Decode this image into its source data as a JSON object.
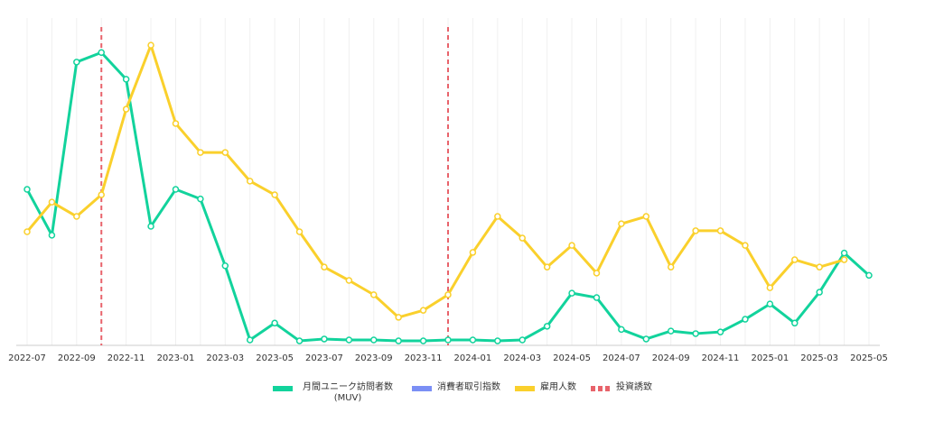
{
  "chart_data": {
    "type": "line",
    "categories": [
      "2022-07",
      null,
      "2022-09",
      null,
      "2022-11",
      null,
      "2023-01",
      null,
      "2023-03",
      null,
      "2023-05",
      null,
      "2023-07",
      null,
      "2023-09",
      null,
      "2023-11",
      null,
      "2024-01",
      null,
      "2024-03",
      null,
      "2024-05",
      null,
      "2024-07",
      null,
      "2024-09",
      null,
      "2024-11",
      null,
      "2025-01",
      null,
      "2025-03",
      null,
      "2025-05"
    ],
    "series": [
      {
        "name": "月間ユニーク訪問者数 (MUV)",
        "color": "#12d39c",
        "values": [
          49,
          34.6,
          89,
          92,
          83.6,
          37.4,
          49,
          46,
          25,
          1.7,
          7,
          1.4,
          2,
          1.7,
          1.7,
          1.4,
          1.4,
          1.7,
          1.7,
          1.4,
          1.7,
          6,
          16.4,
          15,
          5,
          2,
          4.5,
          3.7,
          4.2,
          8.2,
          13,
          7,
          16.7,
          29,
          22
        ]
      },
      {
        "name": "消費者取引指数",
        "color": "#7b8ff5",
        "values": [
          null,
          null,
          null,
          null,
          null,
          null,
          null,
          null,
          null,
          null,
          null,
          null,
          null,
          null,
          null,
          null,
          null,
          null,
          null,
          null,
          null,
          null,
          null,
          null,
          null,
          null,
          null,
          null,
          null,
          null,
          null,
          null,
          null,
          null,
          null
        ]
      },
      {
        "name": "雇用人数",
        "color": "#fad02c",
        "values": [
          35.7,
          45,
          40.5,
          47.3,
          74.2,
          94.3,
          69.7,
          60.6,
          60.6,
          51.6,
          47.3,
          35.7,
          24.6,
          20.4,
          15.9,
          8.8,
          11,
          15.9,
          29.2,
          40.5,
          33.7,
          24.6,
          31.4,
          22.7,
          38.2,
          40.5,
          24.6,
          36,
          36,
          31.4,
          18.1,
          26.9,
          24.6,
          26.9,
          null
        ]
      }
    ],
    "events": {
      "name": "投資誘致",
      "color": "#e8636b",
      "indices": [
        3,
        17
      ]
    },
    "ylim": [
      0,
      100
    ],
    "grid": true
  }
}
